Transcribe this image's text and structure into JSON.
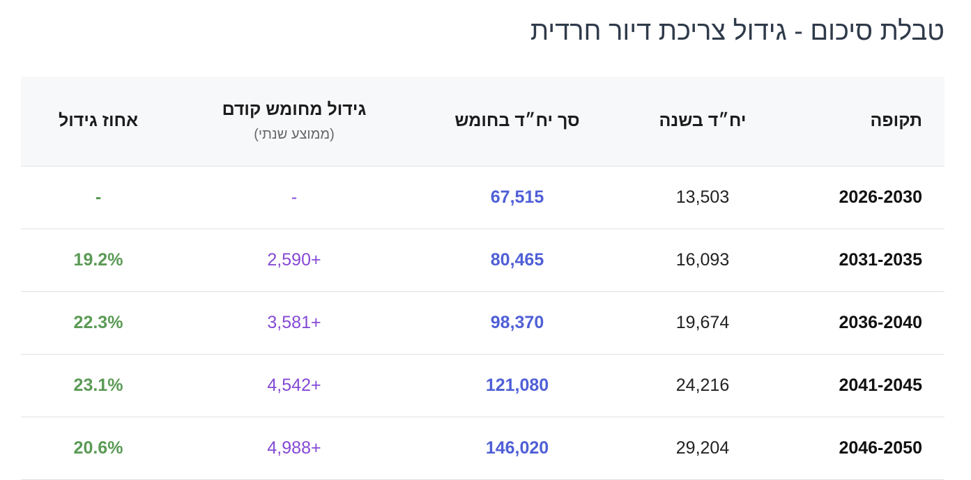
{
  "title": "טבלת סיכום - גידול צריכת דיור חרדית",
  "table": {
    "headers": [
      "תקופה",
      "יח״ד בשנה",
      "סך יח״ד בחומש",
      "גידול מחומש קודם",
      "אחוז גידול"
    ],
    "header_note": "(ממוצע שנתי)",
    "rows": [
      [
        "2026-2030",
        "13,503",
        "67,515",
        "-",
        "-"
      ],
      [
        "2031-2035",
        "16,093",
        "80,465",
        "+2,590",
        "19.2%"
      ],
      [
        "2036-2040",
        "19,674",
        "98,370",
        "+3,581",
        "22.3%"
      ],
      [
        "2041-2045",
        "24,216",
        "121,080",
        "+4,542",
        "23.1%"
      ],
      [
        "2046-2050",
        "29,204",
        "146,020",
        "+4,988",
        "20.6%"
      ]
    ]
  }
}
